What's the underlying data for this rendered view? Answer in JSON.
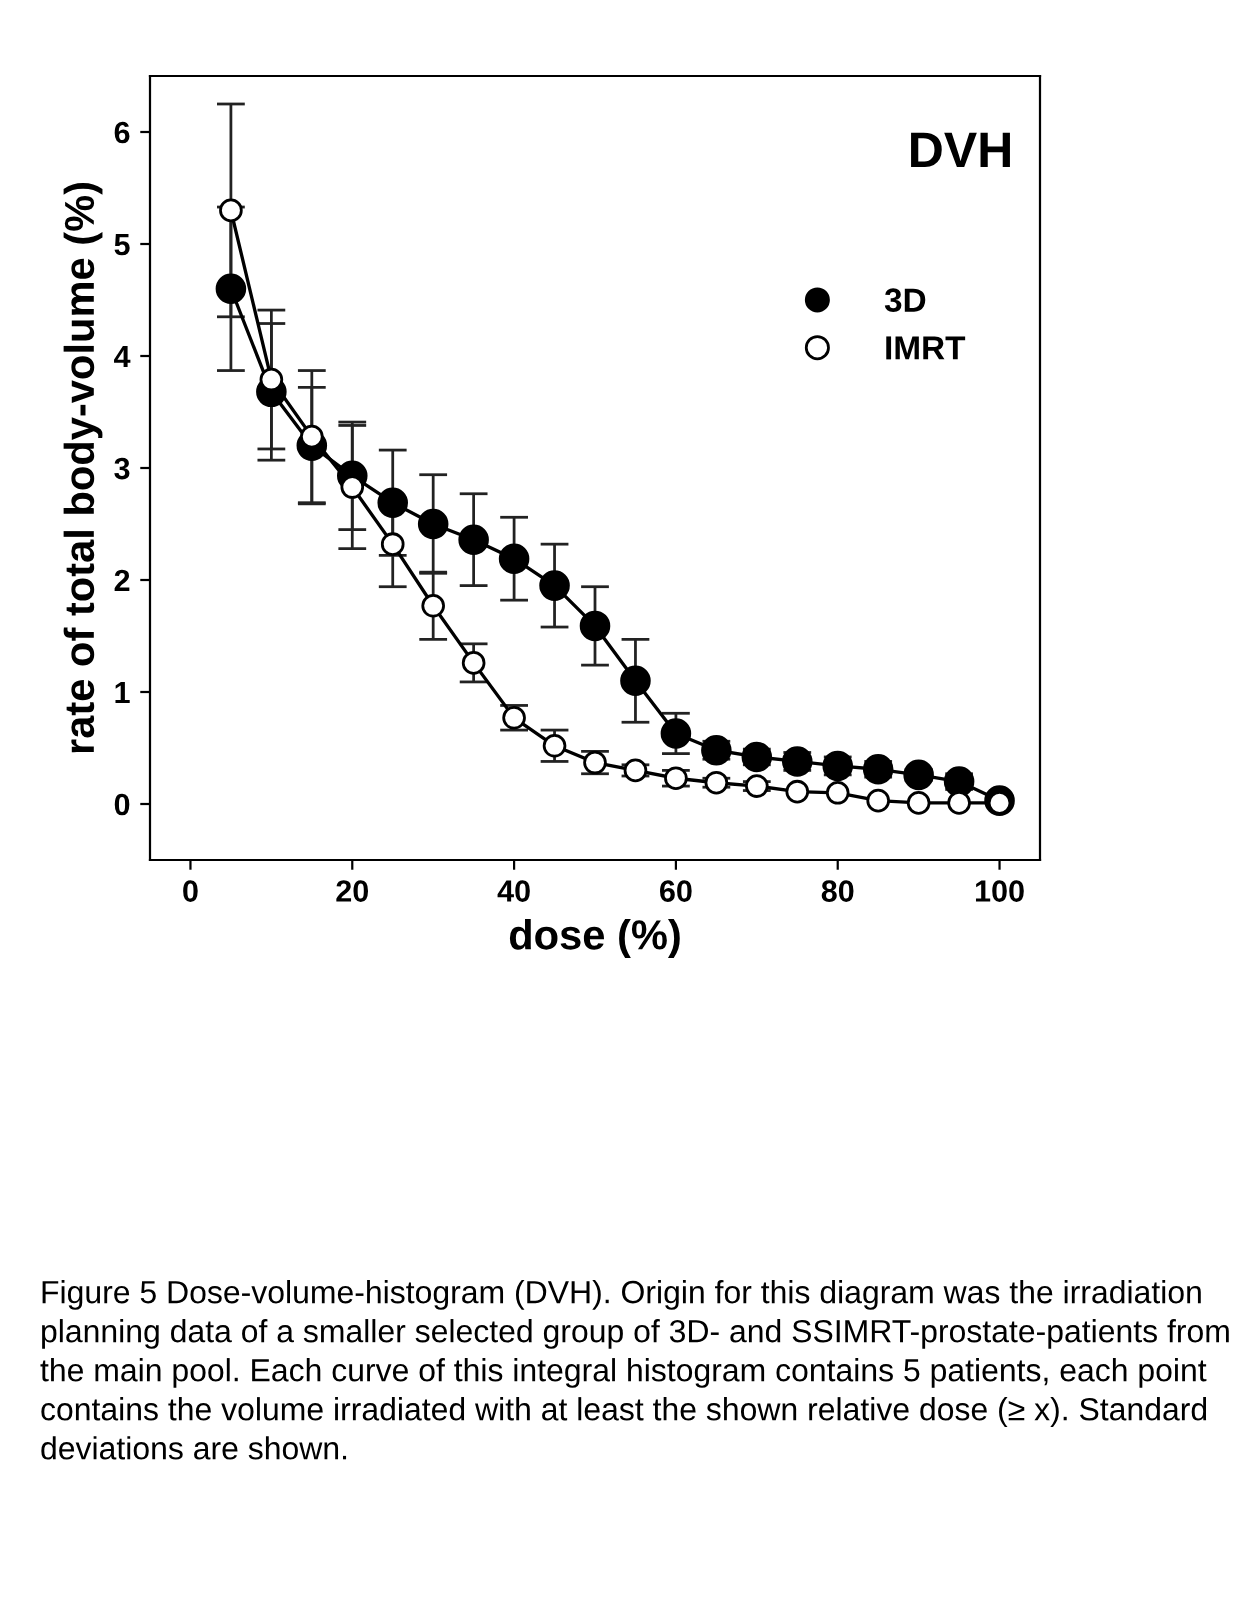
{
  "chart_data": {
    "type": "line",
    "xlabel": "dose (%)",
    "ylabel": "rate of total body-volume (%)",
    "x": [
      5,
      10,
      15,
      20,
      25,
      30,
      35,
      40,
      45,
      50,
      55,
      60,
      65,
      70,
      75,
      80,
      85,
      90,
      95,
      100
    ],
    "series": [
      {
        "name": "3D",
        "color": "#000000",
        "marker": "circle",
        "values": [
          4.6,
          3.68,
          3.2,
          2.93,
          2.69,
          2.5,
          2.36,
          2.19,
          1.95,
          1.59,
          1.1,
          0.63,
          0.48,
          0.42,
          0.38,
          0.34,
          0.31,
          0.26,
          0.2,
          0.03
        ],
        "errors": [
          0.73,
          0.61,
          0.52,
          0.48,
          0.47,
          0.44,
          0.41,
          0.37,
          0.37,
          0.35,
          0.37,
          0.18,
          0.08,
          0.07,
          0.08,
          0.08,
          0.07,
          0.05,
          0.07,
          null
        ]
      },
      {
        "name": "IMRT",
        "color": "#ffffff",
        "marker": "circle",
        "values": [
          5.3,
          3.79,
          3.28,
          2.83,
          2.32,
          1.77,
          1.26,
          0.77,
          0.52,
          0.37,
          0.3,
          0.23,
          0.19,
          0.16,
          0.11,
          0.1,
          0.03,
          0.01,
          0.01,
          0.01
        ],
        "errors": [
          0.95,
          0.62,
          0.59,
          0.55,
          0.38,
          0.3,
          0.17,
          0.11,
          0.14,
          0.1,
          0.05,
          0.07,
          0.04,
          0.04,
          null,
          null,
          null,
          null,
          null,
          null
        ]
      }
    ],
    "xlim": [
      -5,
      105
    ],
    "ylim": [
      -0.5,
      6.5
    ],
    "xticks": [
      0,
      20,
      40,
      60,
      80,
      100
    ],
    "yticks": [
      0,
      1,
      2,
      3,
      4,
      5,
      6
    ],
    "grid": false,
    "legend": "right",
    "line_style": "solid",
    "annotations": [
      "DVH",
      "Figure 5 Dose-volume-histogram (DVH). Origin for this diagram was the irradiation planning data of a smaller selected group of 3D- and SSIMRT-prostate-patients from the main pool. Each curve of this integral histogram contains 5 patients, each point contains the volume irradiated with at least the shown relative dose (≥ x). Standard deviations are shown."
    ]
  }
}
